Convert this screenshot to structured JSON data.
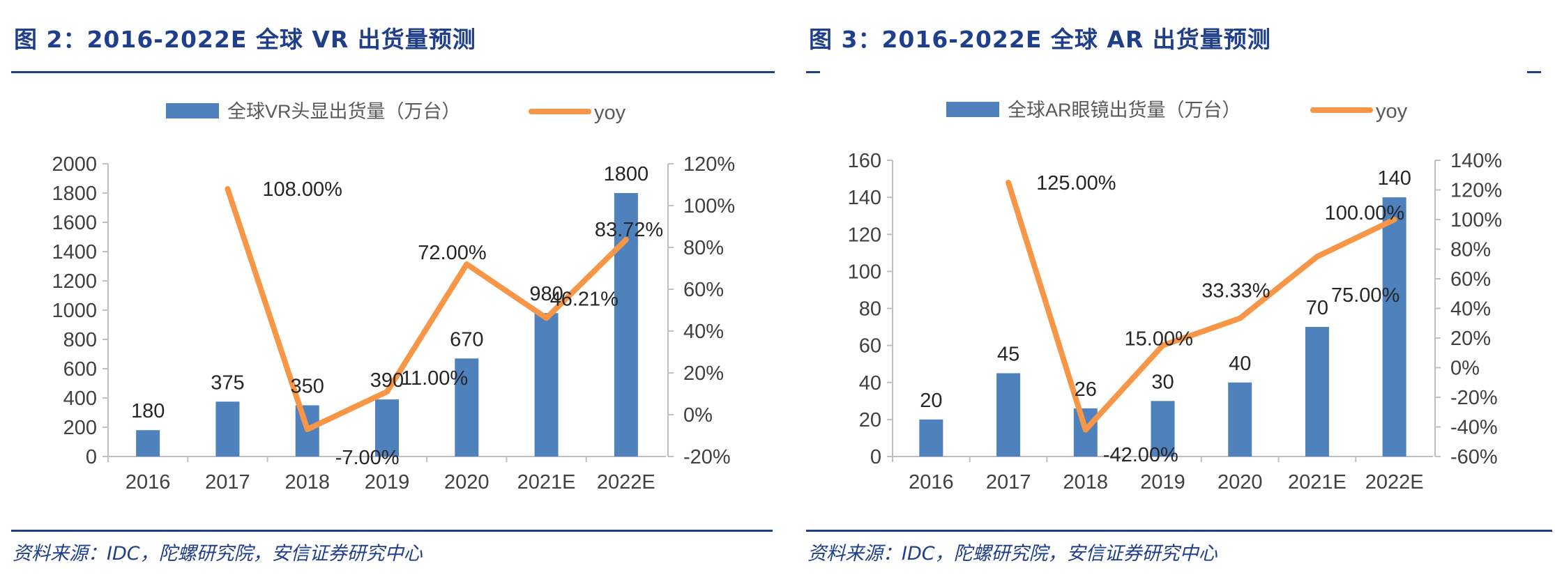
{
  "figures": [
    {
      "title": "图 2：2016-2022E 全球 VR 出货量预测",
      "source": "资料来源：IDC，陀螺研究院，安信证券研究中心",
      "legend": {
        "bar_label": "全球VR头显出货量（万台）",
        "line_label": "yoy"
      },
      "colors": {
        "bar": "#4f81bd",
        "line": "#f79646",
        "accent": "#1f3f8a"
      }
    },
    {
      "title": "图 3：2016-2022E 全球 AR 出货量预测",
      "source": "资料来源：IDC，陀螺研究院，安信证券研究中心",
      "legend": {
        "bar_label": "全球AR眼镜出货量（万台）",
        "line_label": "yoy"
      },
      "colors": {
        "bar": "#4f81bd",
        "line": "#f79646",
        "accent": "#1f3f8a"
      }
    }
  ],
  "chart_data": [
    {
      "type": "bar",
      "categories": [
        "2016",
        "2017",
        "2018",
        "2019",
        "2020",
        "2021E",
        "2022E"
      ],
      "series": [
        {
          "name": "全球VR头显出货量（万台）",
          "type": "bar",
          "axis": "left",
          "values": [
            180,
            375,
            350,
            390,
            670,
            980,
            1800
          ],
          "labels": [
            "180",
            "375",
            "350",
            "390",
            "670",
            "980",
            "1800"
          ]
        },
        {
          "name": "yoy",
          "type": "line",
          "axis": "right",
          "values": [
            null,
            108.0,
            -7.0,
            11.0,
            72.0,
            46.21,
            83.72
          ],
          "labels": [
            "",
            "108.00%",
            "-7.00%",
            "11.00%",
            "72.00%",
            "46.21%",
            "83.72%"
          ]
        }
      ],
      "ylim": [
        0,
        2000
      ],
      "yticks": [
        0,
        200,
        400,
        600,
        800,
        1000,
        1200,
        1400,
        1600,
        1800,
        2000
      ],
      "ytick_labels": [
        "0",
        "200",
        "400",
        "600",
        "800",
        "1000",
        "1200",
        "1400",
        "1600",
        "1800",
        "2000"
      ],
      "y2lim": [
        -20,
        120
      ],
      "y2ticks": [
        -20,
        0,
        20,
        40,
        60,
        80,
        100,
        120
      ],
      "y2tick_labels": [
        "-20%",
        "0%",
        "20%",
        "40%",
        "60%",
        "80%",
        "100%",
        "120%"
      ],
      "legend_position": "top",
      "grid": false
    },
    {
      "type": "bar",
      "categories": [
        "2016",
        "2017",
        "2018",
        "2019",
        "2020",
        "2021E",
        "2022E"
      ],
      "series": [
        {
          "name": "全球AR眼镜出货量（万台）",
          "type": "bar",
          "axis": "left",
          "values": [
            20,
            45,
            26,
            30,
            40,
            70,
            140
          ],
          "labels": [
            "20",
            "45",
            "26",
            "30",
            "40",
            "70",
            "140"
          ]
        },
        {
          "name": "yoy",
          "type": "line",
          "axis": "right",
          "values": [
            null,
            125.0,
            -42.0,
            15.0,
            33.33,
            75.0,
            100.0
          ],
          "labels": [
            "",
            "125.00%",
            "-42.00%",
            "15.00%",
            "33.33%",
            "75.00%",
            "100.00%"
          ]
        }
      ],
      "ylim": [
        0,
        160
      ],
      "yticks": [
        0,
        20,
        40,
        60,
        80,
        100,
        120,
        140,
        160
      ],
      "ytick_labels": [
        "0",
        "20",
        "40",
        "60",
        "80",
        "100",
        "120",
        "140",
        "160"
      ],
      "y2lim": [
        -60,
        140
      ],
      "y2ticks": [
        -60,
        -40,
        -20,
        0,
        20,
        40,
        60,
        80,
        100,
        120,
        140
      ],
      "y2tick_labels": [
        "-60%",
        "-40%",
        "-20%",
        "0%",
        "20%",
        "40%",
        "60%",
        "80%",
        "100%",
        "120%",
        "140%"
      ],
      "legend_position": "top",
      "grid": false
    }
  ]
}
